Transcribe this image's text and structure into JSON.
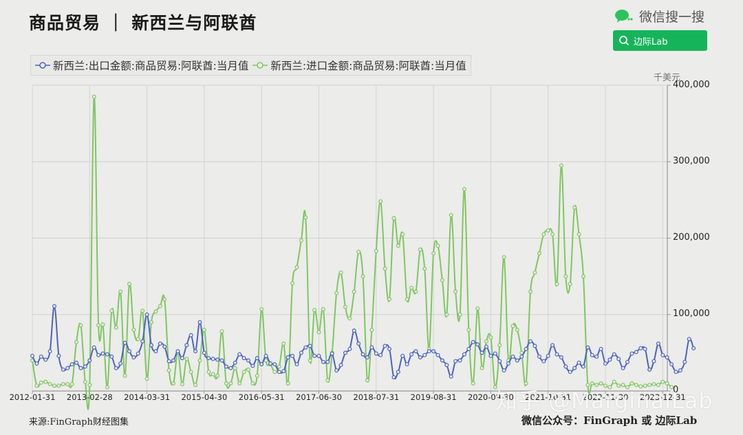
{
  "header": {
    "title": "商品贸易 ｜ 新西兰与阿联酋",
    "wechat_label": "微信搜一搜",
    "search_button_label": "边际Lab"
  },
  "legend": {
    "items": [
      {
        "label": "新西兰:出口金额:商品贸易:阿联酋:当月值",
        "color": "#4a62c4"
      },
      {
        "label": "新西兰:进口金额:商品贸易:阿联酋:当月值",
        "color": "#7fc661"
      }
    ]
  },
  "axis": {
    "unit": "千美元",
    "y_ticks": [
      "400,000",
      "300,000",
      "200,000",
      "100,000",
      "0"
    ],
    "x_ticks": [
      "2012-01-31",
      "2013-02-28",
      "2014-03-31",
      "2015-04-30",
      "2016-05-31",
      "2017-06-30",
      "2018-07-31",
      "2019-08-31",
      "2020-09-30",
      "2021-10-31",
      "2022-11-30",
      "2023-12-31"
    ]
  },
  "footer": {
    "source": "来源:FinGraph财经图集",
    "wechat_account": "微信公众号：FinGraph 或 边际Lab",
    "watermark": "知乎 @MarginalLab"
  },
  "chart_data": {
    "type": "line",
    "title": "商品贸易 ｜ 新西兰与阿联酋",
    "xlabel": "",
    "ylabel": "千美元",
    "ylim": [
      0,
      400000
    ],
    "y_axis_position": "right",
    "grid": true,
    "legend_position": "top",
    "x_start": "2012-01-31",
    "x_frequency": "monthly",
    "x_tick_labels": [
      "2012-01-31",
      "2013-02-28",
      "2014-03-31",
      "2015-04-30",
      "2016-05-31",
      "2017-06-30",
      "2018-07-31",
      "2019-08-31",
      "2020-09-30",
      "2021-10-31",
      "2022-11-30",
      "2023-12-31"
    ],
    "series": [
      {
        "name": "新西兰:出口金额:商品贸易:阿联酋:当月值",
        "color": "#4a62c4",
        "values": [
          46000,
          36000,
          45000,
          41000,
          52000,
          111000,
          46000,
          28000,
          30000,
          35000,
          37000,
          30000,
          32000,
          40000,
          57000,
          47000,
          49000,
          48000,
          45000,
          30000,
          36000,
          63000,
          52000,
          44000,
          49000,
          65000,
          100000,
          60000,
          52000,
          62000,
          58000,
          39000,
          40000,
          52000,
          43000,
          60000,
          73000,
          52000,
          90000,
          50000,
          43000,
          42000,
          41000,
          40000,
          32000,
          30000,
          37000,
          48000,
          43000,
          40000,
          33000,
          43000,
          35000,
          46000,
          36000,
          35000,
          25000,
          26000,
          44000,
          46000,
          35000,
          50000,
          57000,
          59000,
          46000,
          46000,
          38000,
          38000,
          49000,
          27000,
          34000,
          50000,
          55000,
          79000,
          62000,
          48000,
          44000,
          57000,
          49000,
          47000,
          59000,
          55000,
          18000,
          25000,
          46000,
          35000,
          48000,
          52000,
          44000,
          47000,
          52000,
          52000,
          47000,
          40000,
          34000,
          19000,
          39000,
          40000,
          48000,
          55000,
          64000,
          61000,
          50000,
          58000,
          46000,
          49000,
          39000,
          27000,
          36000,
          45000,
          40000,
          45000,
          55000,
          65000,
          59000,
          45000,
          39000,
          46000,
          60000,
          48000,
          44000,
          32000,
          25000,
          30000,
          37000,
          32000,
          57000,
          47000,
          45000,
          55000,
          36000,
          41000,
          48000,
          42000,
          30000,
          38000,
          49000,
          51000,
          56000,
          55000,
          28000,
          39000,
          62000,
          47000,
          44000,
          35000,
          25000,
          27000,
          38000,
          68000,
          56000
        ]
      },
      {
        "name": "新西兰:进口金额:商品贸易:阿联酋:当月值",
        "color": "#7fc661",
        "values": [
          40000,
          7000,
          11000,
          12000,
          9000,
          7000,
          7000,
          9000,
          9000,
          9000,
          64000,
          86000,
          12000,
          8000,
          385000,
          86000,
          87000,
          5000,
          105000,
          83000,
          130000,
          20000,
          140000,
          80000,
          68000,
          105000,
          16000,
          90000,
          104000,
          111000,
          120000,
          27000,
          10000,
          50000,
          9000,
          42000,
          25000,
          8000,
          40000,
          80000,
          25000,
          22000,
          20000,
          78000,
          10000,
          10000,
          30000,
          10000,
          25000,
          28000,
          10000,
          20000,
          107000,
          40000,
          35000,
          25000,
          32000,
          62000,
          10000,
          141000,
          162000,
          197000,
          227000,
          40000,
          106000,
          77000,
          107000,
          14000,
          50000,
          128000,
          155000,
          110000,
          95000,
          130000,
          182000,
          150000,
          14000,
          80000,
          183000,
          248000,
          160000,
          120000,
          226000,
          190000,
          205000,
          120000,
          135000,
          130000,
          185000,
          160000,
          55000,
          180000,
          190000,
          145000,
          100000,
          230000,
          130000,
          100000,
          264000,
          80000,
          10000,
          108000,
          30000,
          65000,
          70000,
          5000,
          60000,
          175000,
          40000,
          85000,
          80000,
          50000,
          10000,
          130000,
          155000,
          180000,
          205000,
          210000,
          205000,
          140000,
          295000,
          150000,
          140000,
          240000,
          205000,
          150000,
          8000,
          10000,
          8000,
          10000,
          7000,
          5000,
          12000,
          7000,
          8000,
          5000,
          10000,
          8000,
          6000,
          7000,
          8000,
          9000,
          8000,
          12000,
          10000,
          5000
        ]
      }
    ]
  }
}
